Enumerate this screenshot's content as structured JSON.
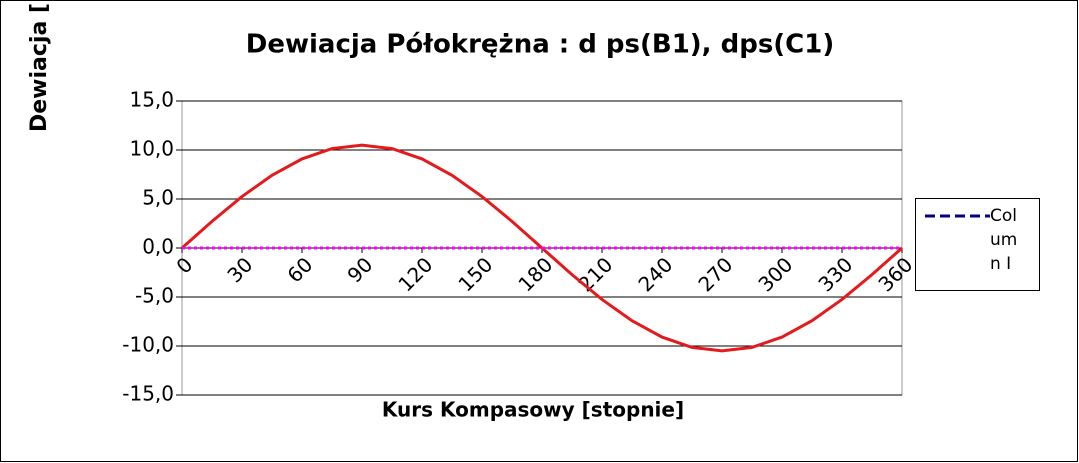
{
  "chart_data": {
    "type": "line",
    "title": "Dewiacja Półokrężna : d ps(B1), dps(C1)",
    "y_label": "Dewiacja [",
    "x_label": "Kurs Kompasowy  [stopnie]",
    "x": [
      0,
      15,
      30,
      45,
      60,
      75,
      90,
      105,
      120,
      135,
      150,
      165,
      180,
      195,
      210,
      225,
      240,
      255,
      270,
      285,
      300,
      315,
      330,
      345,
      360
    ],
    "series": [
      {
        "color": "#e41a1c",
        "values": [
          0,
          2.72,
          5.25,
          7.42,
          9.09,
          10.14,
          10.5,
          10.14,
          9.09,
          7.42,
          5.25,
          2.72,
          0,
          -2.72,
          -5.25,
          -7.42,
          -9.09,
          -10.14,
          -10.5,
          -10.14,
          -9.09,
          -7.42,
          -5.25,
          -2.72,
          0
        ]
      },
      {
        "color": "#ff00ff",
        "values": [
          0,
          0,
          0,
          0,
          0,
          0,
          0,
          0,
          0,
          0,
          0,
          0,
          0,
          0,
          0,
          0,
          0,
          0,
          0,
          0,
          0,
          0,
          0,
          0,
          0
        ]
      }
    ],
    "legend": {
      "label": "Column I",
      "color": "#000080"
    },
    "xlim": [
      0,
      360
    ],
    "xticks": [
      0,
      30,
      60,
      90,
      120,
      150,
      180,
      210,
      240,
      270,
      300,
      330,
      360
    ],
    "ylim": [
      -15,
      15
    ],
    "yticks": [
      {
        "value": -15,
        "label": "-15,0"
      },
      {
        "value": -10,
        "label": "-10,0"
      },
      {
        "value": -5,
        "label": "-5,0"
      },
      {
        "value": 0,
        "label": "0,0"
      },
      {
        "value": 5,
        "label": "5,0"
      },
      {
        "value": 10,
        "label": "10,0"
      },
      {
        "value": 15,
        "label": "15,0"
      }
    ],
    "grid": true
  }
}
